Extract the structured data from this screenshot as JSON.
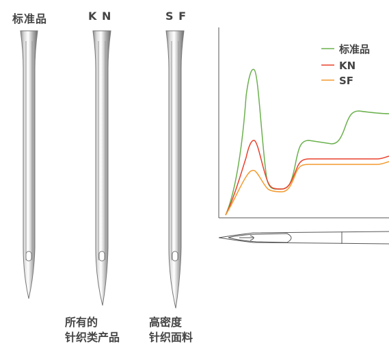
{
  "needles": [
    {
      "label": "标准品"
    },
    {
      "label": "K N"
    },
    {
      "label": "S F"
    }
  ],
  "captions": {
    "kn": {
      "line1": "所有的",
      "line2": "针织类产品"
    },
    "sf": {
      "line1": "高密度",
      "line2": "针织面料"
    }
  },
  "legend": [
    {
      "name": "标准品",
      "color": "#6ab04c"
    },
    {
      "name": "KN",
      "color": "#e8412c"
    },
    {
      "name": "SF",
      "color": "#f39a2e"
    }
  ]
}
